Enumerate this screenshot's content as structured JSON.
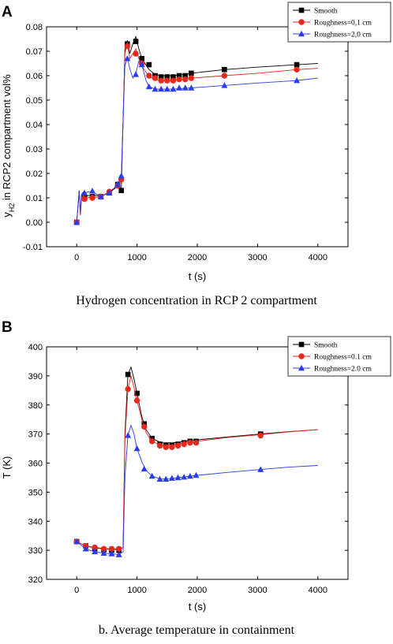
{
  "colors": {
    "smooth": "#000000",
    "rough01": "#e8281c",
    "rough20": "#2b3cf0"
  },
  "panel_a": {
    "letter": "A",
    "caption": "Hydrogen concentration in RCP 2 compartment",
    "ylabel_main": "y",
    "ylabel_sub": "H2",
    "ylabel_rest": " in RCP2 compartment vol%"
  },
  "panel_b": {
    "letter": "B",
    "caption": "b. Average temperature in containment",
    "ylabel": "T (K)"
  },
  "chart_data": [
    {
      "type": "line",
      "xlabel": "t  (s)",
      "ylabel": "y_H2 in RCP2 compartment vol%",
      "xlim": [
        -500,
        4500
      ],
      "ylim": [
        -0.01,
        0.08
      ],
      "xticks": [
        0,
        1000,
        2000,
        3000,
        4000
      ],
      "yticks": [
        -0.01,
        0.0,
        0.01,
        0.02,
        0.03,
        0.04,
        0.05,
        0.06,
        0.07,
        0.08
      ],
      "ytick_labels": [
        "-0.01",
        "0.00",
        "0.01",
        "0.02",
        "0.03",
        "0.04",
        "0.05",
        "0.06",
        "0.07",
        "0.08"
      ],
      "legend_position": "top-right",
      "series": [
        {
          "name": "Smooth",
          "marker": "square",
          "color": "#000000",
          "x": [
            0,
            130,
            260,
            400,
            540,
            680,
            740,
            840,
            980,
            1080,
            1200,
            1300,
            1400,
            1500,
            1600,
            1700,
            1800,
            1900,
            2450,
            3650
          ],
          "y": [
            0.0,
            0.01,
            0.0105,
            0.0105,
            0.012,
            0.0155,
            0.013,
            0.073,
            0.074,
            0.067,
            0.0645,
            0.06,
            0.0595,
            0.0595,
            0.0595,
            0.06,
            0.06,
            0.061,
            0.0625,
            0.0645
          ],
          "line_x": [
            0,
            40,
            60,
            80,
            110,
            130,
            200,
            260,
            300,
            400,
            540,
            640,
            700,
            740,
            800,
            840,
            880,
            930,
            980,
            1030,
            1080,
            1200,
            1300,
            1400,
            1600,
            1900,
            2450,
            3000,
            3650,
            4000
          ],
          "line_y": [
            0.0,
            0.013,
            0.003,
            0.011,
            0.012,
            0.0105,
            0.011,
            0.0108,
            0.011,
            0.0108,
            0.012,
            0.014,
            0.0155,
            0.013,
            0.071,
            0.0745,
            0.069,
            0.073,
            0.076,
            0.071,
            0.067,
            0.0625,
            0.0605,
            0.06,
            0.06,
            0.061,
            0.0625,
            0.0635,
            0.0645,
            0.065
          ]
        },
        {
          "name": "Roughness=0,1 cm",
          "marker": "circle",
          "color": "#e8281c",
          "x": [
            0,
            130,
            260,
            400,
            540,
            680,
            740,
            840,
            980,
            1080,
            1200,
            1300,
            1400,
            1500,
            1600,
            1700,
            1800,
            1900,
            2450,
            3650
          ],
          "y": [
            0.0,
            0.0095,
            0.01,
            0.0105,
            0.0125,
            0.015,
            0.0175,
            0.072,
            0.069,
            0.065,
            0.06,
            0.059,
            0.058,
            0.058,
            0.058,
            0.0585,
            0.0585,
            0.059,
            0.06,
            0.0625
          ],
          "line_x": [
            0,
            40,
            60,
            80,
            110,
            130,
            200,
            260,
            400,
            540,
            680,
            740,
            800,
            840,
            880,
            930,
            980,
            1030,
            1080,
            1200,
            1300,
            1400,
            1600,
            1900,
            2450,
            3000,
            3650,
            4000
          ],
          "line_y": [
            0.0,
            0.012,
            0.003,
            0.01,
            0.011,
            0.0095,
            0.0102,
            0.01,
            0.0105,
            0.0125,
            0.015,
            0.0175,
            0.069,
            0.0735,
            0.067,
            0.069,
            0.071,
            0.067,
            0.064,
            0.0595,
            0.0585,
            0.058,
            0.058,
            0.059,
            0.06,
            0.061,
            0.0625,
            0.063
          ]
        },
        {
          "name": "Roughness=2,0 cm",
          "marker": "triangle",
          "color": "#2b3cf0",
          "x": [
            0,
            130,
            260,
            400,
            540,
            680,
            740,
            840,
            980,
            1080,
            1200,
            1300,
            1400,
            1500,
            1600,
            1700,
            1800,
            1900,
            2450,
            3650
          ],
          "y": [
            0.0,
            0.012,
            0.0128,
            0.0105,
            0.012,
            0.0155,
            0.019,
            0.067,
            0.0605,
            0.0645,
            0.0555,
            0.0545,
            0.0545,
            0.0545,
            0.0545,
            0.055,
            0.055,
            0.055,
            0.056,
            0.058
          ],
          "line_x": [
            0,
            40,
            60,
            80,
            110,
            130,
            200,
            260,
            400,
            540,
            680,
            740,
            800,
            840,
            880,
            930,
            980,
            1030,
            1080,
            1150,
            1200,
            1300,
            1400,
            1600,
            1900,
            2450,
            3000,
            3650,
            4000
          ],
          "line_y": [
            0.0,
            0.0125,
            0.004,
            0.0115,
            0.0125,
            0.012,
            0.0125,
            0.0125,
            0.0105,
            0.012,
            0.0155,
            0.019,
            0.064,
            0.0675,
            0.063,
            0.059,
            0.061,
            0.066,
            0.0645,
            0.058,
            0.0555,
            0.0545,
            0.0545,
            0.0545,
            0.055,
            0.056,
            0.057,
            0.058,
            0.059
          ]
        }
      ]
    },
    {
      "type": "line",
      "xlabel": "t (s)",
      "ylabel": "T (K)",
      "xlim": [
        -500,
        4500
      ],
      "ylim": [
        320,
        400
      ],
      "xticks": [
        0,
        1000,
        2000,
        3000,
        4000
      ],
      "yticks": [
        320,
        330,
        340,
        350,
        360,
        370,
        380,
        390,
        400
      ],
      "ytick_labels": [
        "320",
        "330",
        "340",
        "350",
        "360",
        "370",
        "380",
        "390",
        "400"
      ],
      "legend_position": "top-right",
      "series": [
        {
          "name": "Smooth",
          "marker": "square",
          "color": "#000000",
          "x": [
            0,
            150,
            300,
            450,
            580,
            700,
            850,
            1000,
            1120,
            1250,
            1380,
            1480,
            1580,
            1680,
            1780,
            1880,
            1980,
            3050
          ],
          "y": [
            333,
            331.5,
            330.5,
            330.2,
            330,
            330,
            390.5,
            384,
            373.5,
            368.5,
            366.5,
            366,
            366,
            366.5,
            367,
            367.5,
            367.5,
            370
          ],
          "line_x": [
            0,
            150,
            300,
            450,
            580,
            700,
            770,
            800,
            850,
            900,
            950,
            1000,
            1080,
            1150,
            1250,
            1400,
            1600,
            1800,
            2000,
            2500,
            3050,
            3500,
            4000
          ],
          "line_y": [
            333,
            331.5,
            330.8,
            330.5,
            330.4,
            330.2,
            331,
            370,
            390.5,
            393,
            389,
            384,
            376,
            371.5,
            368.5,
            367,
            367,
            367.5,
            368,
            369,
            370,
            370.8,
            371.5
          ]
        },
        {
          "name": "Roughness=0.1 cm",
          "marker": "circle",
          "color": "#e8281c",
          "x": [
            0,
            150,
            300,
            450,
            580,
            700,
            850,
            1000,
            1120,
            1250,
            1380,
            1480,
            1580,
            1680,
            1780,
            1880,
            1980,
            3050
          ],
          "y": [
            333,
            331.5,
            331,
            330.5,
            330.5,
            330.5,
            385.5,
            381.5,
            372.5,
            367.5,
            366,
            365.5,
            365.5,
            366,
            366.5,
            367,
            367,
            369.5
          ],
          "line_x": [
            0,
            150,
            300,
            450,
            580,
            700,
            770,
            800,
            850,
            900,
            950,
            1000,
            1080,
            1150,
            1250,
            1400,
            1600,
            1800,
            2000,
            2500,
            3050,
            3500,
            4000
          ],
          "line_y": [
            333,
            331.5,
            331,
            330.6,
            330.5,
            330.5,
            331,
            368,
            385.5,
            390,
            386,
            381.5,
            375,
            370.5,
            367.5,
            366,
            366.3,
            367,
            367.5,
            368.8,
            369.8,
            370.7,
            371.5
          ]
        },
        {
          "name": "Roughness=2.0 cm",
          "marker": "triangle",
          "color": "#2b3cf0",
          "x": [
            0,
            150,
            300,
            450,
            580,
            700,
            850,
            1000,
            1120,
            1250,
            1380,
            1480,
            1580,
            1680,
            1780,
            1880,
            1980,
            3050
          ],
          "y": [
            333,
            330.5,
            329.5,
            329,
            328.8,
            328.5,
            369.5,
            365,
            358,
            355.5,
            354.5,
            354.5,
            354.8,
            355,
            355.2,
            355.5,
            355.8,
            357.8
          ],
          "line_x": [
            0,
            150,
            300,
            450,
            580,
            700,
            770,
            800,
            850,
            900,
            950,
            1000,
            1080,
            1150,
            1250,
            1400,
            1600,
            1800,
            2000,
            2500,
            3050,
            3500,
            4000
          ],
          "line_y": [
            333,
            330.5,
            329.5,
            329,
            328.8,
            328.5,
            329.5,
            355,
            369.5,
            373,
            370,
            365,
            360.5,
            357.5,
            355.5,
            354.5,
            354.8,
            355.3,
            355.8,
            356.8,
            357.8,
            358.6,
            359.2
          ]
        }
      ]
    }
  ]
}
